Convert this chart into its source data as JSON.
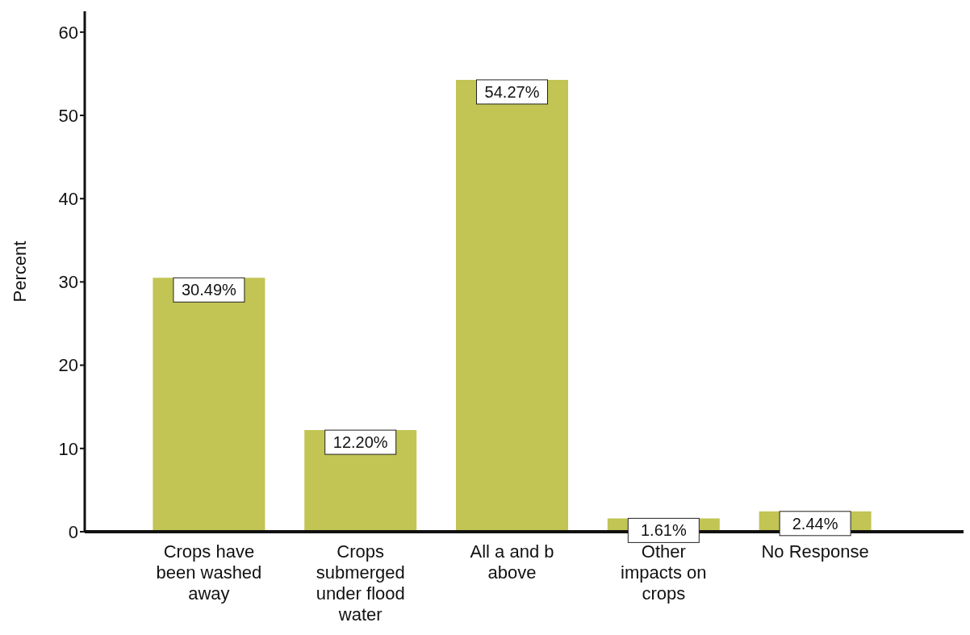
{
  "chart_data": {
    "type": "bar",
    "ylabel": "Percent",
    "categories": [
      "Crops have been washed away",
      "Crops submerged under flood water",
      "All a and b above",
      "Other impacts on crops",
      "No Response"
    ],
    "values": [
      30.49,
      12.2,
      54.27,
      1.61,
      2.44
    ],
    "value_labels": [
      "30.49%",
      "12.20%",
      "54.27%",
      "1.61%",
      "2.44%"
    ],
    "color": "#c2c454",
    "ylim": [
      0,
      62.5
    ],
    "yticks": [
      0,
      10,
      20,
      30,
      40,
      50,
      60
    ]
  }
}
